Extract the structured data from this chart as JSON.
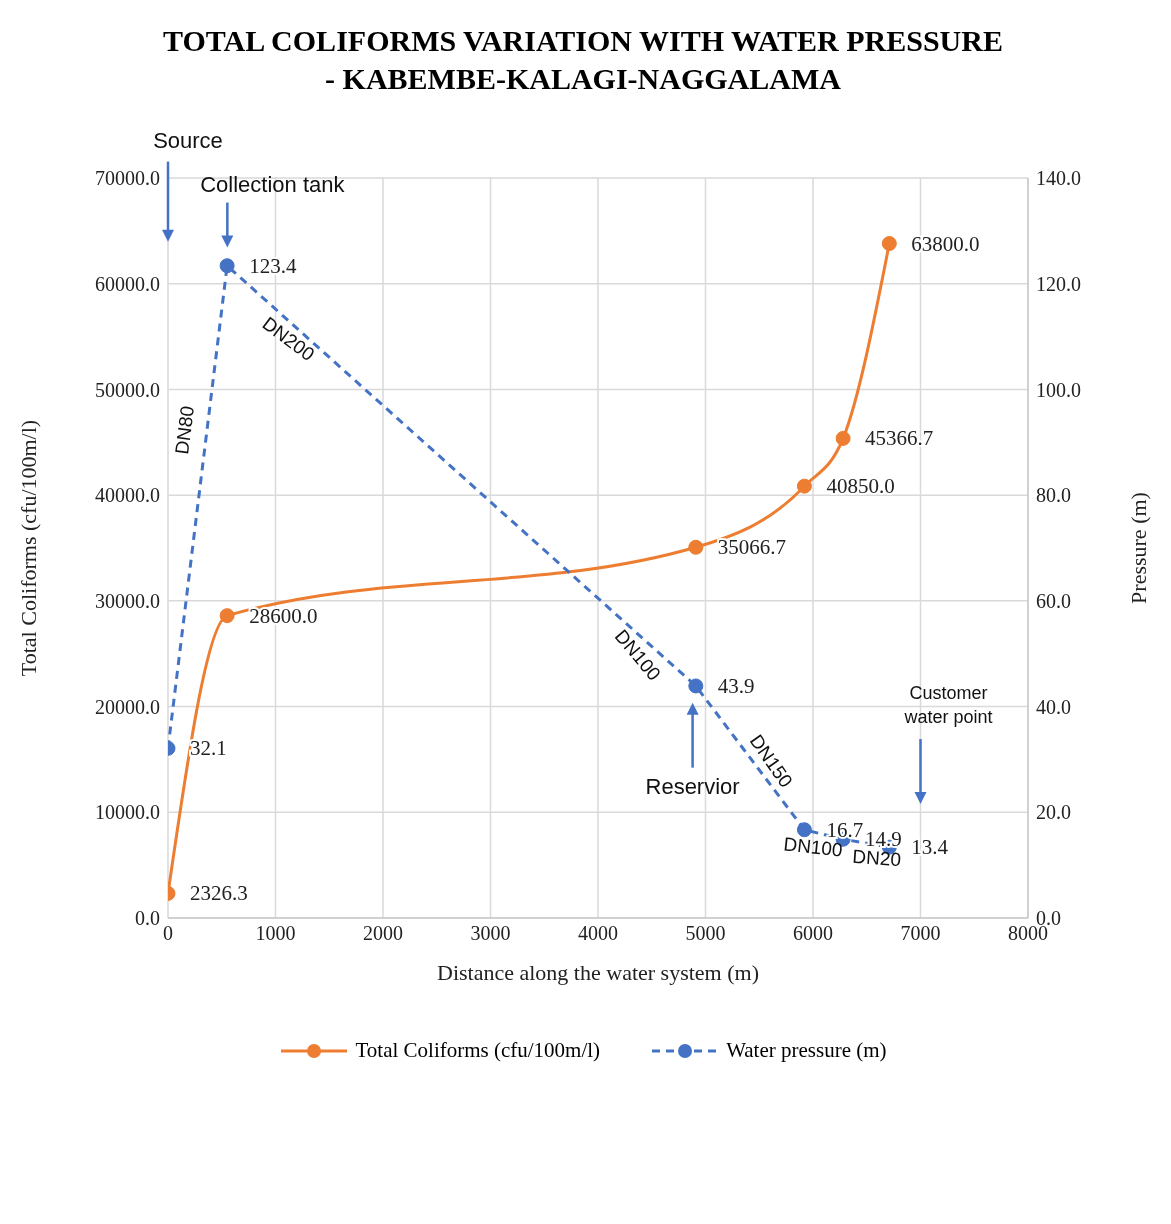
{
  "chart_data": {
    "type": "line",
    "title": "TOTAL COLIFORMS VARIATION WITH WATER PRESSURE\n- KABEMBE-KALAGI-NAGGALAMA",
    "xlabel": "Distance along the water system (m)",
    "ylabel": "Total Coliforms (cfu/100m/l)",
    "y2label": "Pressure (m)",
    "x": [
      0,
      550,
      4910,
      5920,
      6280,
      6710
    ],
    "series": [
      {
        "name": "Total Coliforms (cfu/100m/l)",
        "color": "#ed7d31",
        "values": [
          2326.3,
          28600.0,
          35066.7,
          40850.0,
          45366.7,
          63800.0
        ],
        "value_labels": [
          "2326.3",
          "28600.0",
          "35066.7",
          "40850.0",
          "45366.7",
          "63800.0"
        ],
        "line_style": "solid"
      },
      {
        "name": "Water pressure  (m)",
        "color": "#4472c4",
        "axis": "y2",
        "values": [
          32.1,
          123.4,
          43.9,
          16.7,
          14.9,
          13.4
        ],
        "value_labels": [
          "32.1",
          "123.4",
          "43.9",
          "16.7",
          "14.9",
          "13.4"
        ],
        "line_style": "dashed"
      }
    ],
    "xlim": [
      0,
      8000
    ],
    "xticks": [
      0,
      1000,
      2000,
      3000,
      4000,
      5000,
      6000,
      7000,
      8000
    ],
    "ylim": [
      0,
      70000
    ],
    "yticks": [
      {
        "value": 0,
        "label": "0.0"
      },
      {
        "value": 10000,
        "label": "10000.0"
      },
      {
        "value": 20000,
        "label": "20000.0"
      },
      {
        "value": 30000,
        "label": "30000.0"
      },
      {
        "value": 40000,
        "label": "40000.0"
      },
      {
        "value": 50000,
        "label": "50000.0"
      },
      {
        "value": 60000,
        "label": "60000.0"
      },
      {
        "value": 70000,
        "label": "70000.0"
      }
    ],
    "y2lim": [
      0,
      140
    ],
    "y2ticks": [
      {
        "value": 0,
        "label": "0.0"
      },
      {
        "value": 20,
        "label": "20.0"
      },
      {
        "value": 40,
        "label": "40.0"
      },
      {
        "value": 60,
        "label": "60.0"
      },
      {
        "value": 80,
        "label": "80.0"
      },
      {
        "value": 100,
        "label": "100.0"
      },
      {
        "value": 120,
        "label": "120.0"
      },
      {
        "value": 140,
        "label": "140.0"
      }
    ],
    "grid": true,
    "legend": "bottom",
    "marker": "circle",
    "annotations": [
      "Source",
      "Collection tank",
      "DN80",
      "DN200",
      "DN100",
      "Reservior",
      "DN150",
      "DN100",
      "DN20",
      "Customer\nwater point"
    ]
  }
}
